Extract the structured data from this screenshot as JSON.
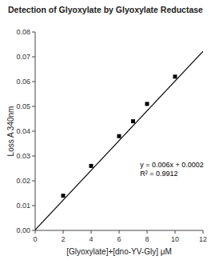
{
  "chart_data": {
    "type": "scatter",
    "title": "Detection of Glyoxylate by Glyoxylate Reductase",
    "xlabel": "[Glyoxylate]+[dno-YV-Gly] μM",
    "ylabel": "Loss A 340nm",
    "xlim": [
      0,
      12
    ],
    "ylim": [
      0,
      0.08
    ],
    "xticks": [
      0,
      2,
      4,
      6,
      8,
      10,
      12
    ],
    "yticks": [
      {
        "value": 0,
        "label": "0.00"
      },
      0.01,
      0.02,
      0.03,
      0.04,
      0.05,
      0.06,
      0.07,
      0.08
    ],
    "grid": false,
    "series": [
      {
        "type": "scatter",
        "marker": "square",
        "color": "#000000",
        "x": [
          2,
          4,
          6,
          7,
          8,
          10
        ],
        "values": [
          0.014,
          0.026,
          0.038,
          0.044,
          0.051,
          0.062
        ]
      },
      {
        "type": "line",
        "line_style": "solid",
        "color": "#000000",
        "x": [
          0,
          12
        ],
        "values": [
          0.0002,
          0.0722
        ]
      }
    ],
    "annotations": [
      {
        "text": [
          "y = 0.006x + 0.0002",
          "R² = 0.9912"
        ],
        "x": 7.5,
        "y": 0.028
      }
    ]
  }
}
